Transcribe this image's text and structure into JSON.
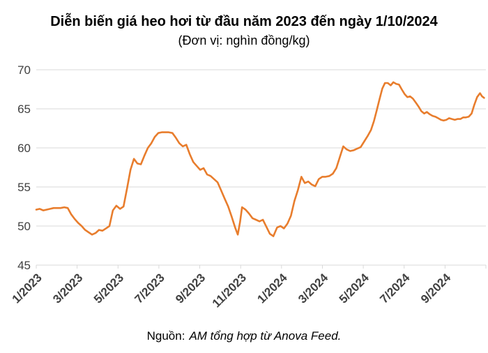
{
  "title": "Diễn biến giá heo hơi từ đầu năm 2023 đến ngày 1/10/2024",
  "subtitle": "(Đơn vị: nghìn đồng/kg)",
  "source": {
    "prefix": "Nguồn:",
    "text": "AM tổng hợp từ Anova Feed."
  },
  "chart_data": {
    "type": "line",
    "title": "Diễn biến giá heo hơi từ đầu năm 2023 đến ngày 1/10/2024",
    "unit_label": "(Đơn vị: nghìn đồng/kg)",
    "series_name": "Giá heo hơi (nghìn đồng/kg)",
    "line_color": "#E87D2D",
    "grid_color": "#D9D9D9",
    "label_color": "#404040",
    "grid": true,
    "ylim": [
      45,
      70
    ],
    "y_ticks": [
      45,
      50,
      55,
      60,
      65,
      70
    ],
    "x_range_months": [
      0,
      22
    ],
    "x_ticks": [
      {
        "t": 0,
        "label": "1/2023"
      },
      {
        "t": 2,
        "label": "3/2023"
      },
      {
        "t": 4,
        "label": "5/2023"
      },
      {
        "t": 6,
        "label": "7/2023"
      },
      {
        "t": 8,
        "label": "9/2023"
      },
      {
        "t": 10,
        "label": "11/2023"
      },
      {
        "t": 12,
        "label": "1/2024"
      },
      {
        "t": 14,
        "label": "3/2024"
      },
      {
        "t": 16,
        "label": "5/2024"
      },
      {
        "t": 18,
        "label": "7/2024"
      },
      {
        "t": 20,
        "label": "9/2024"
      }
    ],
    "points": [
      [
        0,
        52.1
      ],
      [
        0.17,
        52.2
      ],
      [
        0.34,
        52.0
      ],
      [
        0.51,
        52.1
      ],
      [
        0.68,
        52.2
      ],
      [
        0.85,
        52.3
      ],
      [
        1.02,
        52.3
      ],
      [
        1.19,
        52.3
      ],
      [
        1.37,
        52.4
      ],
      [
        1.54,
        52.3
      ],
      [
        1.71,
        51.5
      ],
      [
        1.88,
        50.9
      ],
      [
        2.05,
        50.4
      ],
      [
        2.22,
        50.0
      ],
      [
        2.39,
        49.5
      ],
      [
        2.56,
        49.2
      ],
      [
        2.73,
        48.9
      ],
      [
        2.9,
        49.1
      ],
      [
        3.07,
        49.5
      ],
      [
        3.24,
        49.4
      ],
      [
        3.41,
        49.7
      ],
      [
        3.58,
        50.0
      ],
      [
        3.75,
        52.0
      ],
      [
        3.92,
        52.6
      ],
      [
        4.1,
        52.2
      ],
      [
        4.27,
        52.5
      ],
      [
        4.44,
        54.8
      ],
      [
        4.61,
        57.2
      ],
      [
        4.78,
        58.6
      ],
      [
        4.95,
        58.0
      ],
      [
        5.12,
        57.9
      ],
      [
        5.29,
        59.0
      ],
      [
        5.46,
        60.0
      ],
      [
        5.63,
        60.6
      ],
      [
        5.8,
        61.4
      ],
      [
        5.97,
        61.9
      ],
      [
        6.14,
        62.0
      ],
      [
        6.31,
        62.0
      ],
      [
        6.48,
        62.0
      ],
      [
        6.66,
        61.9
      ],
      [
        6.83,
        61.3
      ],
      [
        7.0,
        60.6
      ],
      [
        7.17,
        60.2
      ],
      [
        7.34,
        60.4
      ],
      [
        7.51,
        59.2
      ],
      [
        7.68,
        58.2
      ],
      [
        7.85,
        57.7
      ],
      [
        8.02,
        57.2
      ],
      [
        8.19,
        57.4
      ],
      [
        8.36,
        56.6
      ],
      [
        8.53,
        56.4
      ],
      [
        8.7,
        56.0
      ],
      [
        8.87,
        55.6
      ],
      [
        9.04,
        54.6
      ],
      [
        9.22,
        53.5
      ],
      [
        9.39,
        52.5
      ],
      [
        9.56,
        51.2
      ],
      [
        9.73,
        49.8
      ],
      [
        9.86,
        48.9
      ],
      [
        9.97,
        50.5
      ],
      [
        10.07,
        52.4
      ],
      [
        10.24,
        52.1
      ],
      [
        10.41,
        51.6
      ],
      [
        10.58,
        51.0
      ],
      [
        10.75,
        50.8
      ],
      [
        10.92,
        50.6
      ],
      [
        11.09,
        50.8
      ],
      [
        11.26,
        49.9
      ],
      [
        11.43,
        49.0
      ],
      [
        11.6,
        48.7
      ],
      [
        11.78,
        49.8
      ],
      [
        11.95,
        50.0
      ],
      [
        12.12,
        49.7
      ],
      [
        12.29,
        50.3
      ],
      [
        12.46,
        51.3
      ],
      [
        12.63,
        53.2
      ],
      [
        12.8,
        54.6
      ],
      [
        12.97,
        56.3
      ],
      [
        13.14,
        55.5
      ],
      [
        13.31,
        55.7
      ],
      [
        13.48,
        55.3
      ],
      [
        13.65,
        55.1
      ],
      [
        13.82,
        56.0
      ],
      [
        13.99,
        56.3
      ],
      [
        14.16,
        56.3
      ],
      [
        14.34,
        56.4
      ],
      [
        14.51,
        56.7
      ],
      [
        14.68,
        57.4
      ],
      [
        14.85,
        58.8
      ],
      [
        15.02,
        60.2
      ],
      [
        15.19,
        59.8
      ],
      [
        15.36,
        59.6
      ],
      [
        15.53,
        59.7
      ],
      [
        15.7,
        59.9
      ],
      [
        15.87,
        60.1
      ],
      [
        16.04,
        60.8
      ],
      [
        16.21,
        61.5
      ],
      [
        16.38,
        62.3
      ],
      [
        16.52,
        63.4
      ],
      [
        16.66,
        64.8
      ],
      [
        16.79,
        66.2
      ],
      [
        16.93,
        67.6
      ],
      [
        17.06,
        68.3
      ],
      [
        17.2,
        68.3
      ],
      [
        17.34,
        68.0
      ],
      [
        17.47,
        68.4
      ],
      [
        17.61,
        68.2
      ],
      [
        17.75,
        68.1
      ],
      [
        17.88,
        67.5
      ],
      [
        18.02,
        66.9
      ],
      [
        18.16,
        66.5
      ],
      [
        18.29,
        66.6
      ],
      [
        18.43,
        66.3
      ],
      [
        18.57,
        65.8
      ],
      [
        18.7,
        65.3
      ],
      [
        18.84,
        64.7
      ],
      [
        18.98,
        64.4
      ],
      [
        19.11,
        64.6
      ],
      [
        19.25,
        64.3
      ],
      [
        19.39,
        64.1
      ],
      [
        19.52,
        64.0
      ],
      [
        19.66,
        63.8
      ],
      [
        19.8,
        63.6
      ],
      [
        19.93,
        63.5
      ],
      [
        20.07,
        63.6
      ],
      [
        20.2,
        63.8
      ],
      [
        20.34,
        63.7
      ],
      [
        20.48,
        63.6
      ],
      [
        20.61,
        63.7
      ],
      [
        20.75,
        63.7
      ],
      [
        20.89,
        63.9
      ],
      [
        21.02,
        63.9
      ],
      [
        21.16,
        64.0
      ],
      [
        21.3,
        64.4
      ],
      [
        21.43,
        65.5
      ],
      [
        21.57,
        66.5
      ],
      [
        21.71,
        67.0
      ],
      [
        21.81,
        66.6
      ],
      [
        21.91,
        66.4
      ]
    ]
  }
}
